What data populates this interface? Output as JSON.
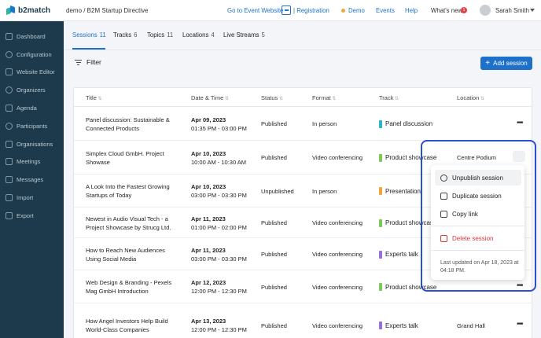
{
  "brand": {
    "name": "b2match"
  },
  "sidebar": {
    "items": [
      {
        "label": "Dashboard",
        "icon": "dashboard-icon"
      },
      {
        "label": "Configuration",
        "icon": "gear-icon"
      },
      {
        "label": "Website Editor",
        "icon": "pen-icon"
      },
      {
        "label": "Organizers",
        "icon": "user-icon"
      },
      {
        "label": "Agenda",
        "icon": "calendar-icon"
      },
      {
        "label": "Participants",
        "icon": "users-icon"
      },
      {
        "label": "Organisations",
        "icon": "building-icon"
      },
      {
        "label": "Meetings",
        "icon": "calendar-icon"
      },
      {
        "label": "Messages",
        "icon": "chat-icon"
      },
      {
        "label": "Import",
        "icon": "import-icon"
      },
      {
        "label": "Export",
        "icon": "export-icon"
      }
    ]
  },
  "header": {
    "breadcrumb": "demo / B2M Startup Directive",
    "event_link": "Go to Event Website",
    "registration": "| Registration",
    "demo": "Demo",
    "events": "Events",
    "help": "Help",
    "whats_new": "What's new",
    "whats_new_count": "1",
    "user": "Sarah Smith"
  },
  "tabs": [
    {
      "label": "Sessions",
      "count": "11"
    },
    {
      "label": "Tracks",
      "count": "6"
    },
    {
      "label": "Topics",
      "count": "11"
    },
    {
      "label": "Locations",
      "count": "4"
    },
    {
      "label": "Live Streams",
      "count": "5"
    }
  ],
  "toolbar": {
    "filter": "Filter",
    "add_session": "Add session"
  },
  "table": {
    "headers": [
      "Title",
      "Date & Time",
      "Status",
      "Format",
      "Track",
      "Location"
    ],
    "rows": [
      {
        "title": "Panel discussion: Sustainable & Connected Products",
        "date": "Apr 09, 2023",
        "time": "01:35 PM - 03:00 PM",
        "status": "Published",
        "format": "In person",
        "track": "Panel discussion",
        "track_color": "#2bb5c9",
        "location": ""
      },
      {
        "title": "Simplex Cloud GmbH. Project Showase",
        "date": "Apr 10, 2023",
        "time": "10:00 AM - 10:30 AM",
        "status": "Published",
        "format": "Video conferencing",
        "track": "Product showcase",
        "track_color": "#7cc95a",
        "location": "Centre Podium"
      },
      {
        "title": "A Look Into the Fastest Growing Startups of Today",
        "date": "Apr 10, 2023",
        "time": "03:00 PM - 03:30 PM",
        "status": "Unpublished",
        "format": "In person",
        "track": "Presentation",
        "track_color": "#f0a43a",
        "location": ""
      },
      {
        "title": "Newest in Audio Visual Tech - a Project Showcase by Strucg Ltd.",
        "date": "Apr 11, 2023",
        "time": "01:00 PM - 02:00 PM",
        "status": "Published",
        "format": "Video conferencing",
        "track": "Product showcase",
        "track_color": "#7cc95a",
        "location": ""
      },
      {
        "title": "How to Reach New Audiences Using Social Media",
        "date": "Apr 11, 2023",
        "time": "03:00 PM - 03:30 PM",
        "status": "Published",
        "format": "Video conferencing",
        "track": "Experts talk",
        "track_color": "#9b6ddb",
        "location": ""
      },
      {
        "title": "Web Design & Branding - Pexels Mag GmbH Introduction",
        "date": "Apr 12, 2023",
        "time": "12:00 PM - 12:30 PM",
        "status": "Published",
        "format": "Video conferencing",
        "track": "Product showcase",
        "track_color": "#7cc95a",
        "location": ""
      },
      {
        "title": "How Angel Investors Help Build World-Class Companies",
        "date": "Apr 13, 2023",
        "time": "12:00 PM - 12:30 PM",
        "status": "Published",
        "format": "Video conferencing",
        "track": "Experts talk",
        "track_color": "#9b6ddb",
        "location": "Grand Hall"
      }
    ]
  },
  "context_menu": {
    "unpublish": "Unpublish session",
    "duplicate": "Duplicate session",
    "copy_link": "Copy link",
    "delete": "Delete session",
    "updated": "Last updated on Apr 18, 2023 at 04:18 PM."
  },
  "colors": {
    "accent": "#1e70c9",
    "sidebar": "#1c3a4b",
    "danger": "#d33a3a",
    "highlight": "#2b4fd1"
  }
}
